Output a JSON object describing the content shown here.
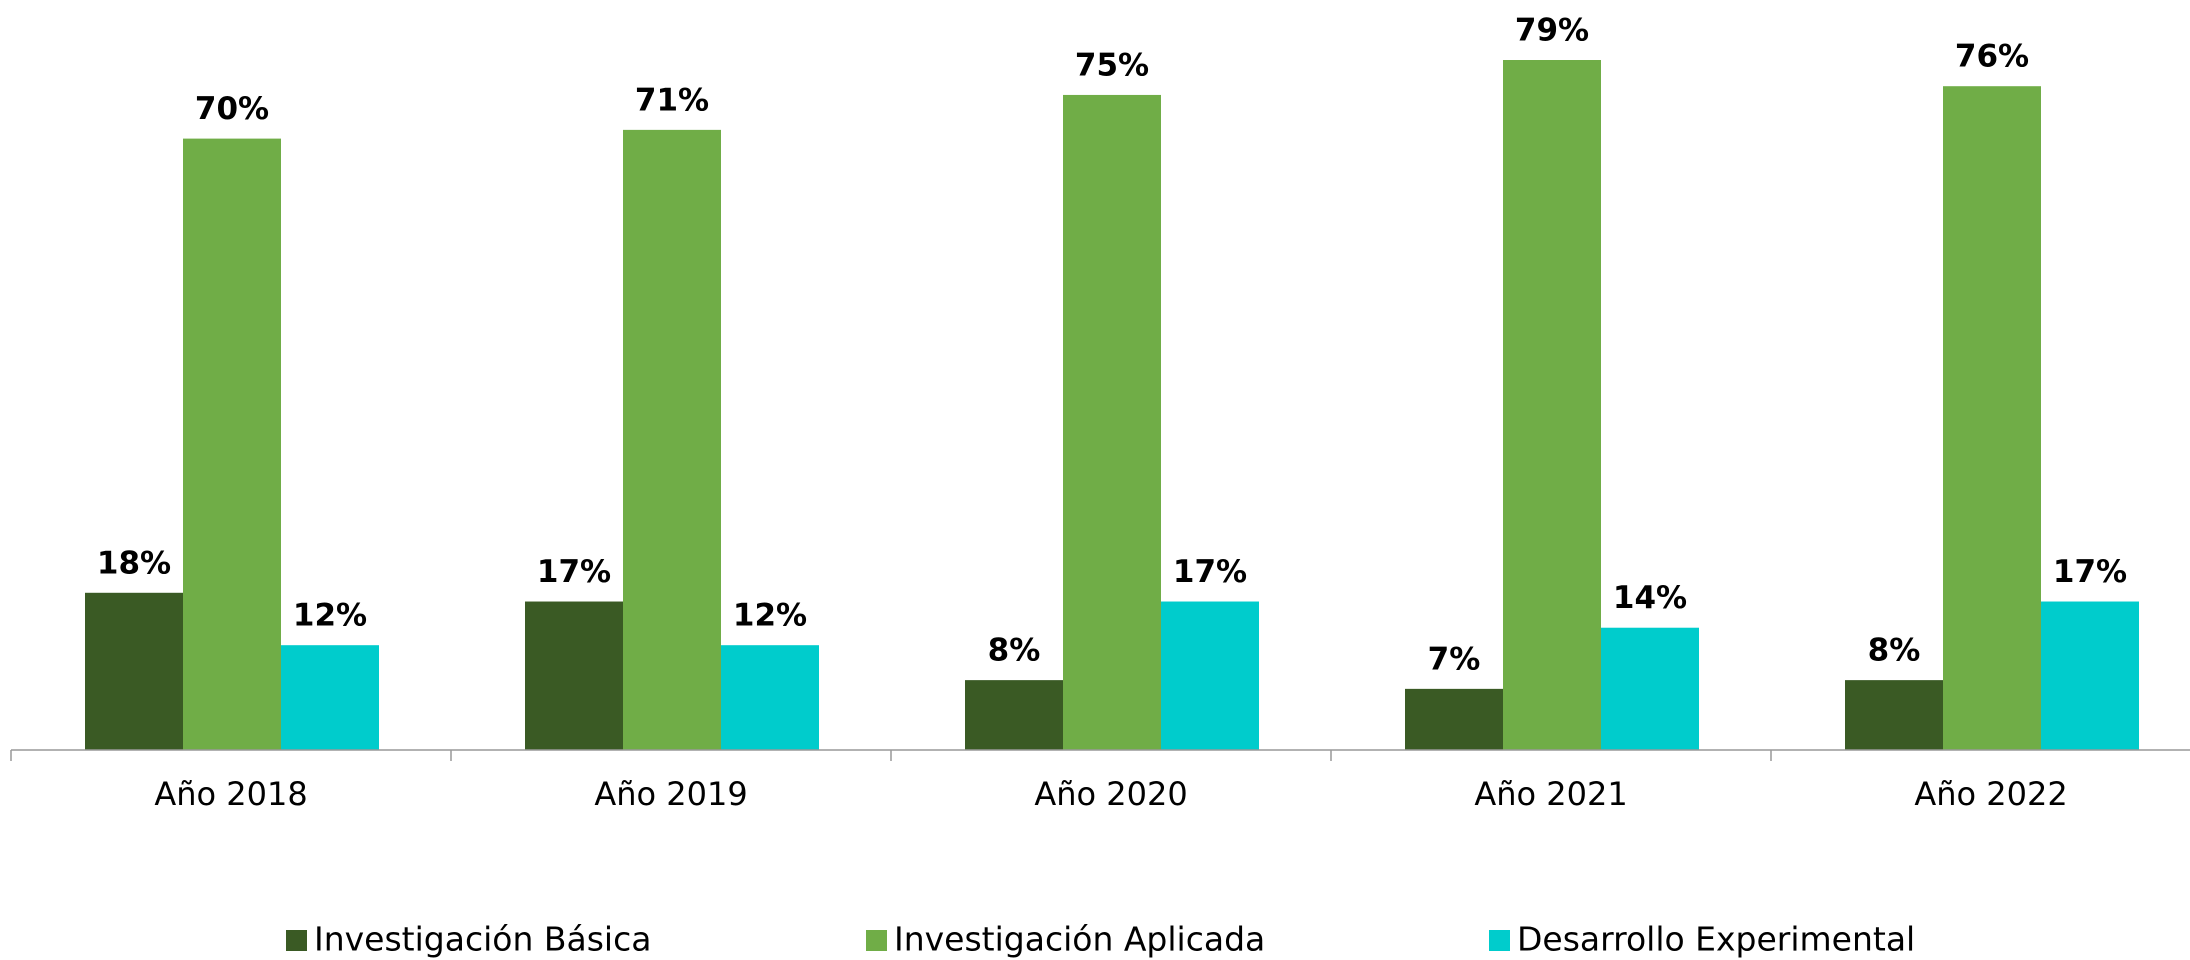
{
  "chart_data": {
    "type": "bar",
    "categories": [
      "Año 2018",
      "Año 2019",
      "Año 2020",
      "Año 2021",
      "Año 2022"
    ],
    "series": [
      {
        "name": "Investigación Básica",
        "color": "#3a5a24",
        "values": [
          18,
          17,
          8,
          7,
          8
        ],
        "value_labels": [
          "18%",
          "17%",
          "8%",
          "7%",
          "8%"
        ]
      },
      {
        "name": "Investigación Aplicada",
        "color": "#70ad47",
        "values": [
          70,
          71,
          75,
          79,
          76
        ],
        "value_labels": [
          "70%",
          "71%",
          "75%",
          "79%",
          "76%"
        ]
      },
      {
        "name": "Desarrollo Experimental",
        "color": "#00cccc",
        "values": [
          12,
          12,
          17,
          14,
          17
        ],
        "value_labels": [
          "12%",
          "12%",
          "17%",
          "14%",
          "17%"
        ]
      }
    ],
    "legend": "bottom"
  }
}
